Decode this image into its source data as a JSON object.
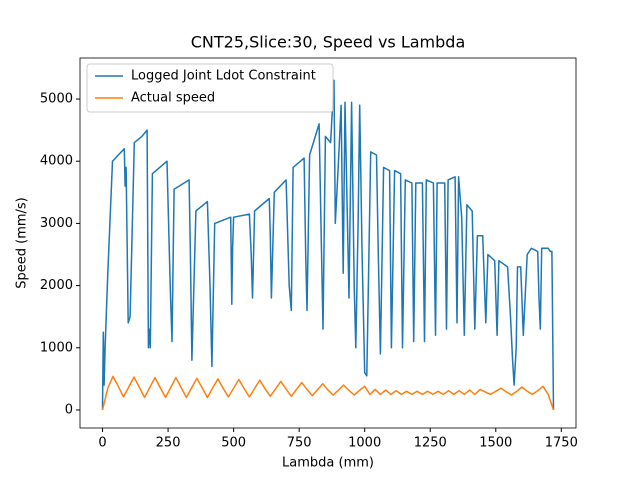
{
  "chart_data": {
    "type": "line",
    "title": "CNT25,Slice:30, Speed vs Lambda",
    "xlabel": "Lambda (mm)",
    "ylabel": "Speed (mm/s)",
    "xlim": [
      -86,
      1806
    ],
    "ylim": [
      -290,
      5660
    ],
    "xticks": [
      0,
      250,
      500,
      750,
      1000,
      1250,
      1500,
      1750
    ],
    "yticks": [
      0,
      1000,
      2000,
      3000,
      4000,
      5000
    ],
    "legend": "upper left",
    "series": [
      {
        "name": "Logged Joint Ldot Constraint",
        "color": "#1f77b4",
        "x": [
          0,
          3,
          6,
          10,
          20,
          38,
          60,
          83,
          86,
          90,
          98,
          105,
          121,
          150,
          170,
          175,
          178,
          182,
          190,
          246,
          258,
          265,
          273,
          330,
          335,
          341,
          356,
          400,
          410,
          417,
          428,
          489,
          493,
          496,
          500,
          560,
          567,
          572,
          580,
          636,
          640,
          644,
          655,
          700,
          712,
          720,
          727,
          769,
          775,
          780,
          790,
          826,
          834,
          841,
          850,
          870,
          883,
          888,
          900,
          910,
          918,
          925,
          940,
          950,
          960,
          966,
          975,
          981,
          990,
          1000,
          1008,
          1023,
          1045,
          1052,
          1060,
          1072,
          1095,
          1102,
          1114,
          1137,
          1144,
          1155,
          1180,
          1187,
          1195,
          1220,
          1228,
          1235,
          1262,
          1270,
          1276,
          1305,
          1312,
          1318,
          1345,
          1352,
          1358,
          1370,
          1380,
          1390,
          1410,
          1420,
          1430,
          1450,
          1462,
          1470,
          1496,
          1505,
          1512,
          1545,
          1556,
          1564,
          1570,
          1578,
          1583,
          1595,
          1605,
          1620,
          1636,
          1660,
          1665,
          1670,
          1675,
          1700,
          1708,
          1714,
          1720
        ],
        "values": [
          0,
          1250,
          400,
          1050,
          2200,
          4000,
          4100,
          4200,
          3600,
          3900,
          1400,
          1500,
          4300,
          4400,
          4500,
          1000,
          1300,
          1000,
          3800,
          4000,
          2000,
          1100,
          3550,
          3700,
          2500,
          800,
          3200,
          3350,
          2000,
          700,
          3000,
          3100,
          1700,
          2600,
          3100,
          3150,
          2500,
          1800,
          3200,
          3400,
          2800,
          1800,
          3500,
          3700,
          2000,
          1600,
          3900,
          4050,
          2500,
          1600,
          4100,
          4600,
          2800,
          1300,
          4400,
          4300,
          5300,
          3000,
          4000,
          4900,
          2200,
          4950,
          1800,
          4950,
          2000,
          1000,
          3000,
          4900,
          2500,
          600,
          550,
          4150,
          4100,
          2500,
          900,
          3900,
          3850,
          1000,
          3850,
          3800,
          1000,
          3700,
          3650,
          1100,
          3650,
          3650,
          1100,
          3700,
          3650,
          1200,
          3650,
          3650,
          1300,
          3700,
          3750,
          1400,
          3750,
          3100,
          1200,
          3300,
          3200,
          1300,
          2800,
          2800,
          1400,
          2500,
          2400,
          1200,
          2400,
          2300,
          1500,
          800,
          400,
          1000,
          2300,
          2300,
          1200,
          2500,
          2600,
          2550,
          1800,
          1300,
          2600,
          2600,
          2550,
          2550,
          0
        ]
      },
      {
        "name": "Actual speed",
        "color": "#ff7f0e",
        "x": [
          0,
          20,
          40,
          60,
          80,
          100,
          120,
          140,
          160,
          180,
          200,
          220,
          240,
          260,
          280,
          300,
          320,
          340,
          360,
          380,
          400,
          420,
          440,
          460,
          480,
          500,
          520,
          540,
          560,
          580,
          600,
          620,
          640,
          660,
          680,
          700,
          720,
          740,
          760,
          780,
          800,
          820,
          840,
          860,
          880,
          900,
          920,
          940,
          960,
          980,
          1000,
          1020,
          1040,
          1060,
          1080,
          1100,
          1120,
          1140,
          1160,
          1180,
          1200,
          1220,
          1240,
          1260,
          1280,
          1300,
          1320,
          1340,
          1360,
          1380,
          1400,
          1420,
          1440,
          1460,
          1480,
          1500,
          1520,
          1540,
          1560,
          1580,
          1600,
          1620,
          1640,
          1660,
          1680,
          1700,
          1720
        ],
        "values": [
          0,
          350,
          540,
          380,
          210,
          370,
          530,
          370,
          200,
          360,
          520,
          360,
          200,
          360,
          520,
          360,
          200,
          360,
          510,
          355,
          200,
          355,
          500,
          350,
          210,
          350,
          490,
          345,
          210,
          345,
          480,
          340,
          220,
          340,
          460,
          335,
          220,
          330,
          440,
          330,
          230,
          325,
          420,
          320,
          240,
          320,
          400,
          315,
          240,
          315,
          380,
          250,
          330,
          250,
          320,
          250,
          310,
          250,
          300,
          250,
          300,
          250,
          300,
          250,
          300,
          250,
          310,
          250,
          310,
          250,
          320,
          250,
          330,
          290,
          250,
          300,
          350,
          290,
          240,
          300,
          370,
          300,
          250,
          310,
          380,
          250,
          0
        ]
      }
    ]
  }
}
